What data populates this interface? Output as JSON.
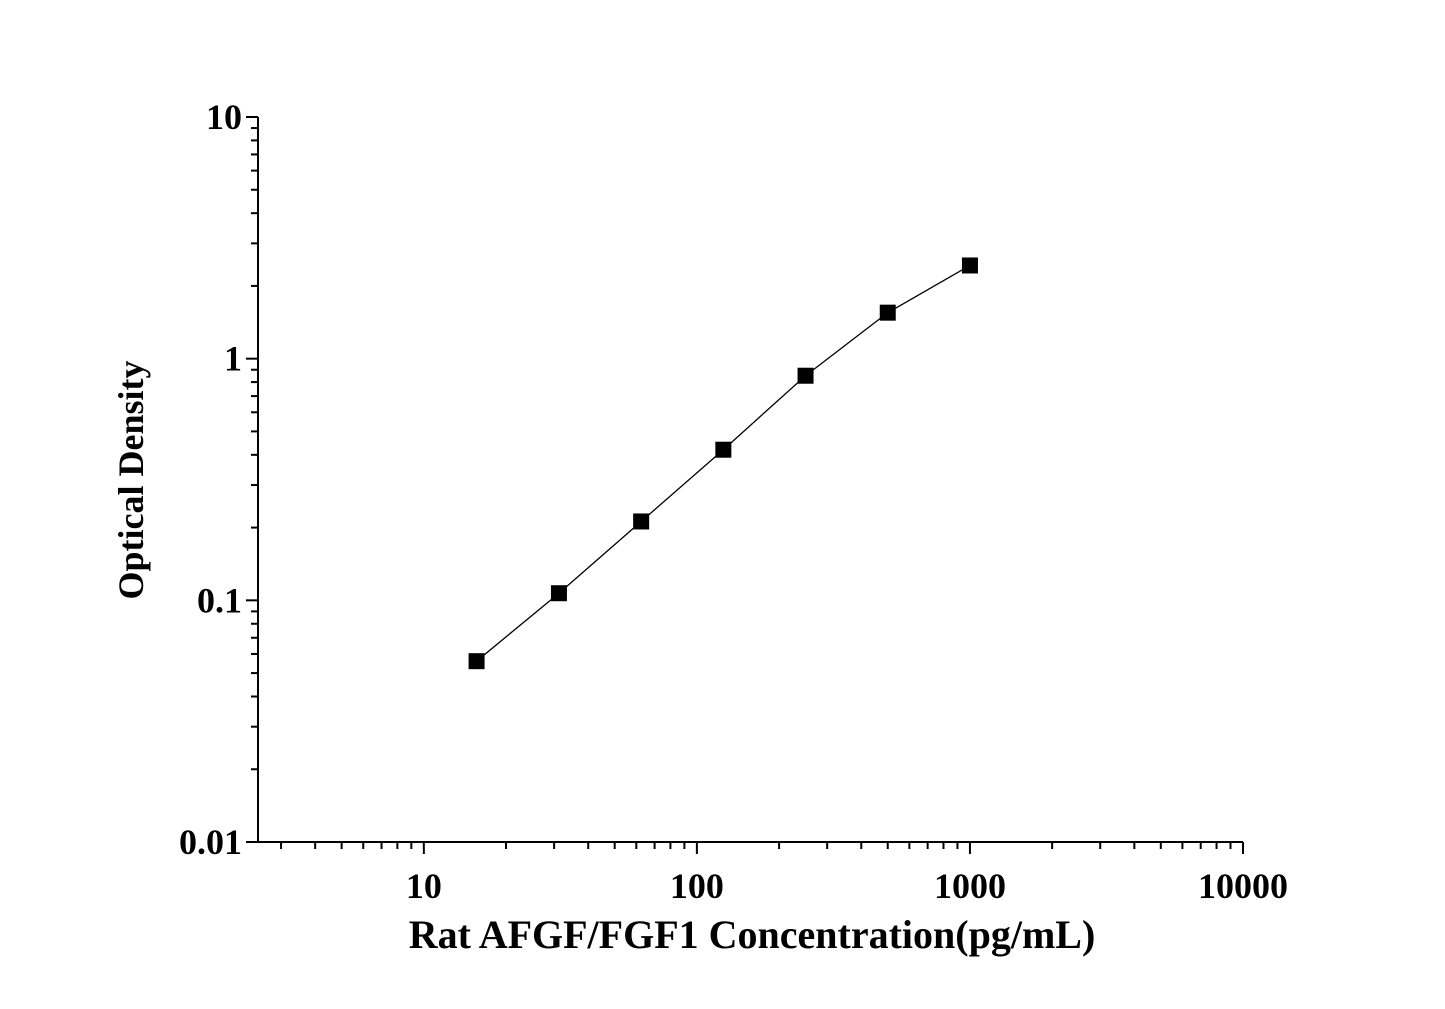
{
  "chart_data": {
    "type": "line",
    "title": "",
    "xlabel": "Rat AFGF/FGF1 Concentration(pg/mL)",
    "ylabel": "Optical Density",
    "xscale": "log",
    "yscale": "log",
    "xlim": [
      2.47,
      10000
    ],
    "ylim": [
      0.01,
      10
    ],
    "x_ticks": [
      "10",
      "100",
      "1000",
      "10000"
    ],
    "y_ticks": [
      "0.01",
      "0.1",
      "1",
      "10"
    ],
    "grid": false,
    "legend": "none",
    "marker": "square",
    "color": "#000000",
    "series": [
      {
        "x": [
          15.6,
          31.25,
          62.5,
          125,
          250,
          500,
          1000
        ],
        "y": [
          0.056,
          0.107,
          0.212,
          0.42,
          0.85,
          1.55,
          2.43
        ]
      }
    ]
  }
}
